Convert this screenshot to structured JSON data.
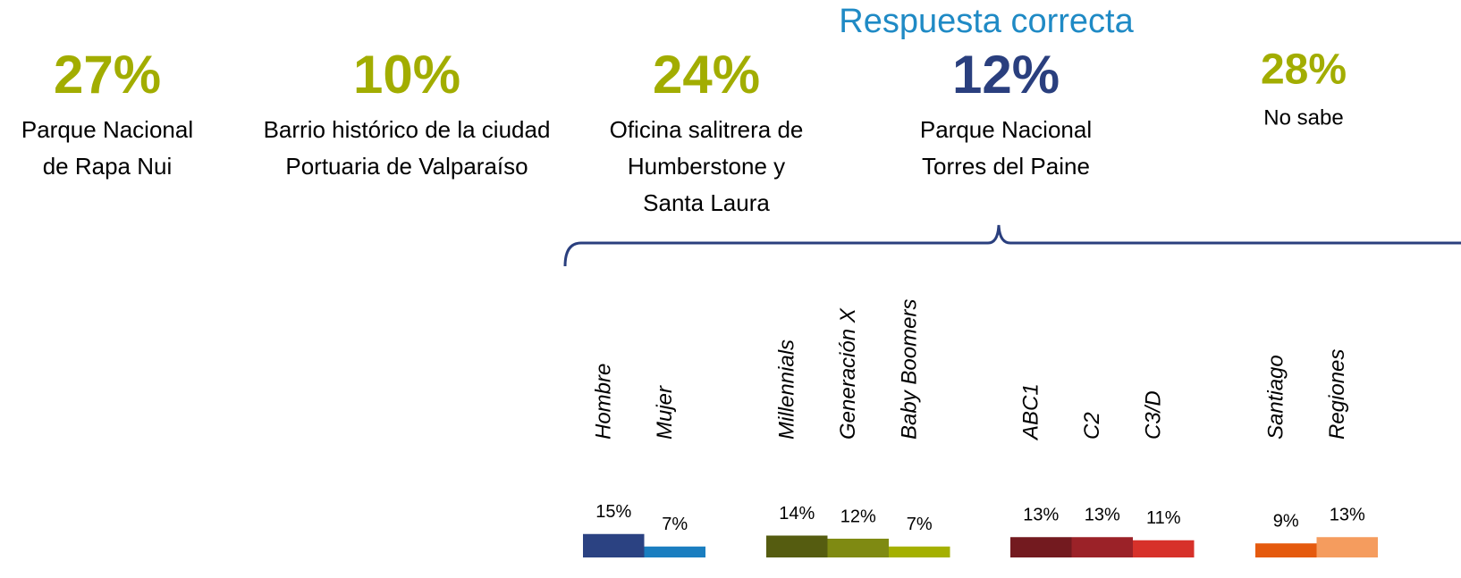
{
  "header": "Respuesta correcta",
  "answers": [
    {
      "percent": "27%",
      "lines": [
        "Parque Nacional",
        "de Rapa Nui"
      ]
    },
    {
      "percent": "10%",
      "lines": [
        "Barrio histórico de la ciudad",
        "Portuaria de Valparaíso"
      ]
    },
    {
      "percent": "24%",
      "lines": [
        "Oficina salitrera de",
        "Humberstone y",
        "Santa Laura"
      ]
    },
    {
      "percent": "12%",
      "lines": [
        "Parque Nacional",
        "Torres del Paine"
      ],
      "correct": true
    },
    {
      "percent": "28%",
      "lines": [
        "No sabe"
      ]
    }
  ],
  "chart_data": {
    "type": "bar",
    "categories": [
      "Hombre",
      "Mujer",
      "Millennials",
      "Generación X",
      "Baby Boomers",
      "ABC1",
      "C2",
      "C3/D",
      "Santiago",
      "Regiones"
    ],
    "values": [
      15,
      7,
      14,
      12,
      7,
      13,
      13,
      11,
      9,
      13
    ],
    "value_labels": [
      "15%",
      "7%",
      "14%",
      "12%",
      "7%",
      "13%",
      "13%",
      "11%",
      "9%",
      "13%"
    ],
    "colors": [
      "#2b4282",
      "#1a7ec0",
      "#555c10",
      "#7f8a12",
      "#a4b000",
      "#731a1f",
      "#9b2228",
      "#d7312a",
      "#e55a0e",
      "#f59c5e"
    ]
  }
}
